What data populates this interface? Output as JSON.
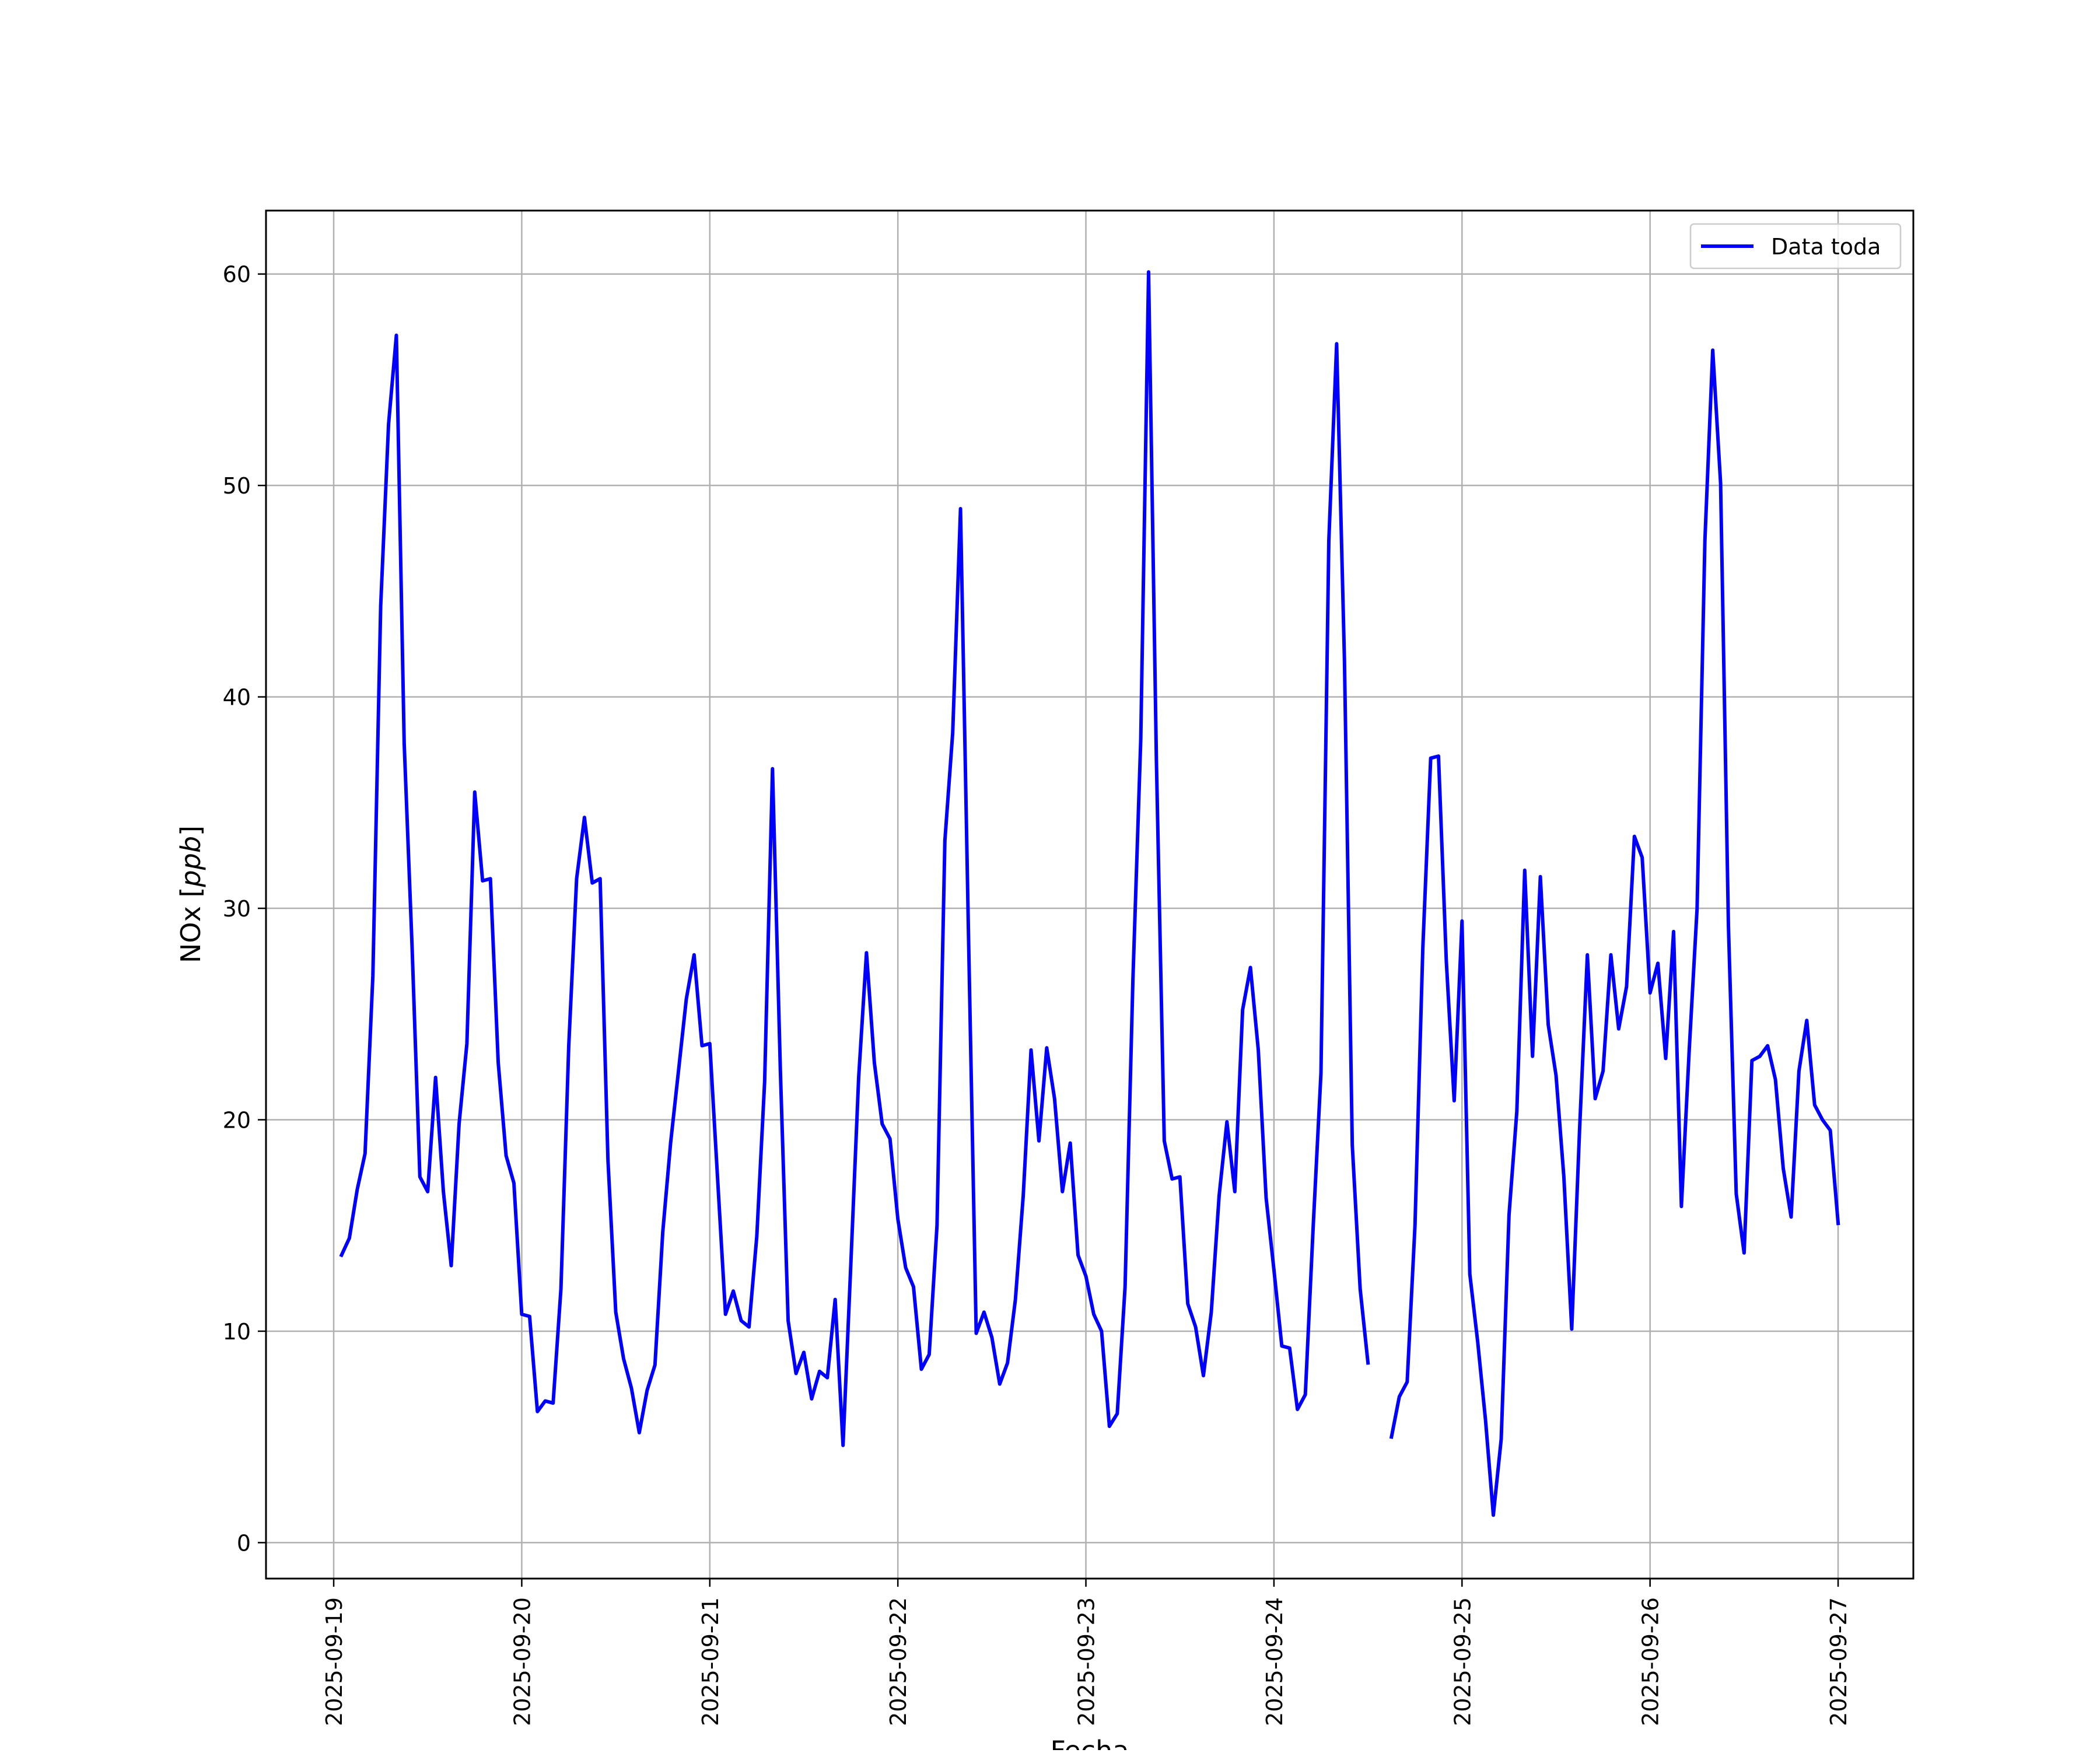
{
  "chart_data": {
    "type": "line",
    "xlabel": "Fecha",
    "ylabel_main": "NOx ",
    "ylabel_unit": "ppb",
    "ylim": [
      -1.7,
      63.0
    ],
    "xlim_days": [
      -0.36,
      8.4
    ],
    "yticks": [
      0,
      10,
      20,
      30,
      40,
      50,
      60
    ],
    "xtick_labels": [
      "2025-09-19",
      "2025-09-20",
      "2025-09-21",
      "2025-09-22",
      "2025-09-23",
      "2025-09-24",
      "2025-09-25",
      "2025-09-26",
      "2025-09-27"
    ],
    "grid": true,
    "legend_position": "top-right",
    "series": [
      {
        "name": "Data toda",
        "color": "#0000ff",
        "time_unit": "hours from 2025-09-19 00:00",
        "points": [
          [
            1,
            13.6
          ],
          [
            2,
            14.4
          ],
          [
            3,
            16.7
          ],
          [
            4,
            18.4
          ],
          [
            5,
            26.8
          ],
          [
            6,
            44.3
          ],
          [
            7,
            52.9
          ],
          [
            8,
            57.1
          ],
          [
            9,
            37.8
          ],
          [
            10,
            28.2
          ],
          [
            11,
            17.3
          ],
          [
            12,
            16.6
          ],
          [
            13,
            22.0
          ],
          [
            14,
            16.6
          ],
          [
            15,
            13.1
          ],
          [
            16,
            19.8
          ],
          [
            17,
            23.6
          ],
          [
            18,
            35.5
          ],
          [
            19,
            31.3
          ],
          [
            20,
            31.4
          ],
          [
            21,
            22.7
          ],
          [
            22,
            18.3
          ],
          [
            23,
            17.0
          ],
          [
            24,
            10.8
          ],
          [
            25,
            10.7
          ],
          [
            26,
            6.2
          ],
          [
            27,
            6.7
          ],
          [
            28,
            6.6
          ],
          [
            29,
            12.0
          ],
          [
            30,
            23.5
          ],
          [
            31,
            31.4
          ],
          [
            32,
            34.3
          ],
          [
            33,
            31.2
          ],
          [
            34,
            31.4
          ],
          [
            35,
            18.1
          ],
          [
            36,
            10.9
          ],
          [
            37,
            8.7
          ],
          [
            38,
            7.3
          ],
          [
            39,
            5.2
          ],
          [
            40,
            7.2
          ],
          [
            41,
            8.4
          ],
          [
            42,
            14.7
          ],
          [
            43,
            18.9
          ],
          [
            44,
            22.3
          ],
          [
            45,
            25.7
          ],
          [
            46,
            27.8
          ],
          [
            47,
            23.5
          ],
          [
            48,
            23.6
          ],
          [
            49,
            17.2
          ],
          [
            50,
            10.8
          ],
          [
            51,
            11.9
          ],
          [
            52,
            10.5
          ],
          [
            53,
            10.2
          ],
          [
            54,
            14.5
          ],
          [
            55,
            21.8
          ],
          [
            56,
            36.6
          ],
          [
            57,
            22.4
          ],
          [
            58,
            10.5
          ],
          [
            59,
            8.0
          ],
          [
            60,
            9.0
          ],
          [
            61,
            6.8
          ],
          [
            62,
            8.1
          ],
          [
            63,
            7.8
          ],
          [
            64,
            11.5
          ],
          [
            65,
            4.6
          ],
          [
            66,
            13.2
          ],
          [
            67,
            22.0
          ],
          [
            68,
            27.9
          ],
          [
            69,
            22.7
          ],
          [
            70,
            19.8
          ],
          [
            71,
            19.1
          ],
          [
            72,
            15.3
          ],
          [
            73,
            13.0
          ],
          [
            74,
            12.1
          ],
          [
            75,
            8.2
          ],
          [
            76,
            8.9
          ],
          [
            77,
            15.0
          ],
          [
            78,
            33.2
          ],
          [
            79,
            38.3
          ],
          [
            80,
            48.9
          ],
          [
            81,
            29.0
          ],
          [
            82,
            9.9
          ],
          [
            83,
            10.9
          ],
          [
            84,
            9.7
          ],
          [
            85,
            7.5
          ],
          [
            86,
            8.5
          ],
          [
            87,
            11.5
          ],
          [
            88,
            16.4
          ],
          [
            89,
            23.3
          ],
          [
            90,
            19.0
          ],
          [
            91,
            23.4
          ],
          [
            92,
            21.0
          ],
          [
            93,
            16.6
          ],
          [
            94,
            18.9
          ],
          [
            95,
            13.6
          ],
          [
            96,
            12.6
          ],
          [
            97,
            10.8
          ],
          [
            98,
            10.0
          ],
          [
            99,
            5.5
          ],
          [
            100,
            6.1
          ],
          [
            101,
            12.1
          ],
          [
            102,
            26.6
          ],
          [
            103,
            38.0
          ],
          [
            104,
            60.1
          ],
          [
            105,
            37.0
          ],
          [
            106,
            19.0
          ],
          [
            107,
            17.2
          ],
          [
            108,
            17.3
          ],
          [
            109,
            11.3
          ],
          [
            110,
            10.2
          ],
          [
            111,
            7.9
          ],
          [
            112,
            10.9
          ],
          [
            113,
            16.4
          ],
          [
            114,
            19.9
          ],
          [
            115,
            16.6
          ],
          [
            116,
            25.2
          ],
          [
            117,
            27.2
          ],
          [
            118,
            23.3
          ],
          [
            119,
            16.3
          ],
          [
            120,
            12.9
          ],
          [
            121,
            9.3
          ],
          [
            122,
            9.2
          ],
          [
            123,
            6.3
          ],
          [
            124,
            7.0
          ],
          [
            125,
            14.9
          ],
          [
            126,
            22.2
          ],
          [
            127,
            47.4
          ],
          [
            128,
            56.7
          ],
          [
            129,
            41.7
          ],
          [
            130,
            18.8
          ],
          [
            131,
            12.0
          ],
          [
            132,
            8.5
          ],
          null,
          [
            135,
            5.0
          ],
          [
            136,
            6.9
          ],
          [
            137,
            7.6
          ],
          [
            138,
            15.0
          ],
          [
            139,
            28.1
          ],
          [
            140,
            37.1
          ],
          [
            141,
            37.2
          ],
          [
            142,
            27.5
          ],
          [
            143,
            20.9
          ],
          [
            144,
            29.4
          ],
          [
            145,
            12.7
          ],
          [
            146,
            9.5
          ],
          [
            147,
            5.8
          ],
          [
            148,
            1.3
          ],
          [
            149,
            4.9
          ],
          [
            150,
            15.5
          ],
          [
            151,
            20.4
          ],
          [
            152,
            31.8
          ],
          [
            153,
            23.0
          ],
          [
            154,
            31.5
          ],
          [
            155,
            24.5
          ],
          [
            156,
            22.1
          ],
          [
            157,
            17.3
          ],
          [
            158,
            10.1
          ],
          [
            159,
            19.5
          ],
          [
            160,
            27.8
          ],
          [
            161,
            21.0
          ],
          [
            162,
            22.3
          ],
          [
            163,
            27.8
          ],
          [
            164,
            24.3
          ],
          [
            165,
            26.3
          ],
          [
            166,
            33.4
          ],
          [
            167,
            32.4
          ],
          [
            168,
            26.0
          ],
          [
            169,
            27.4
          ],
          [
            170,
            22.9
          ],
          [
            171,
            28.9
          ],
          [
            172,
            15.9
          ],
          [
            173,
            23.3
          ],
          [
            174,
            30.0
          ],
          [
            175,
            47.4
          ],
          [
            176,
            56.4
          ],
          [
            177,
            50.1
          ],
          [
            178,
            29.2
          ],
          [
            179,
            16.5
          ],
          [
            180,
            13.7
          ],
          [
            181,
            22.8
          ],
          [
            182,
            23.0
          ],
          [
            183,
            23.5
          ],
          [
            184,
            21.9
          ],
          [
            185,
            17.7
          ],
          [
            186,
            15.4
          ],
          [
            187,
            22.3
          ],
          [
            188,
            24.7
          ],
          [
            189,
            20.7
          ],
          [
            190,
            20.0
          ],
          [
            191,
            19.5
          ],
          [
            192,
            15.1
          ]
        ]
      }
    ]
  }
}
